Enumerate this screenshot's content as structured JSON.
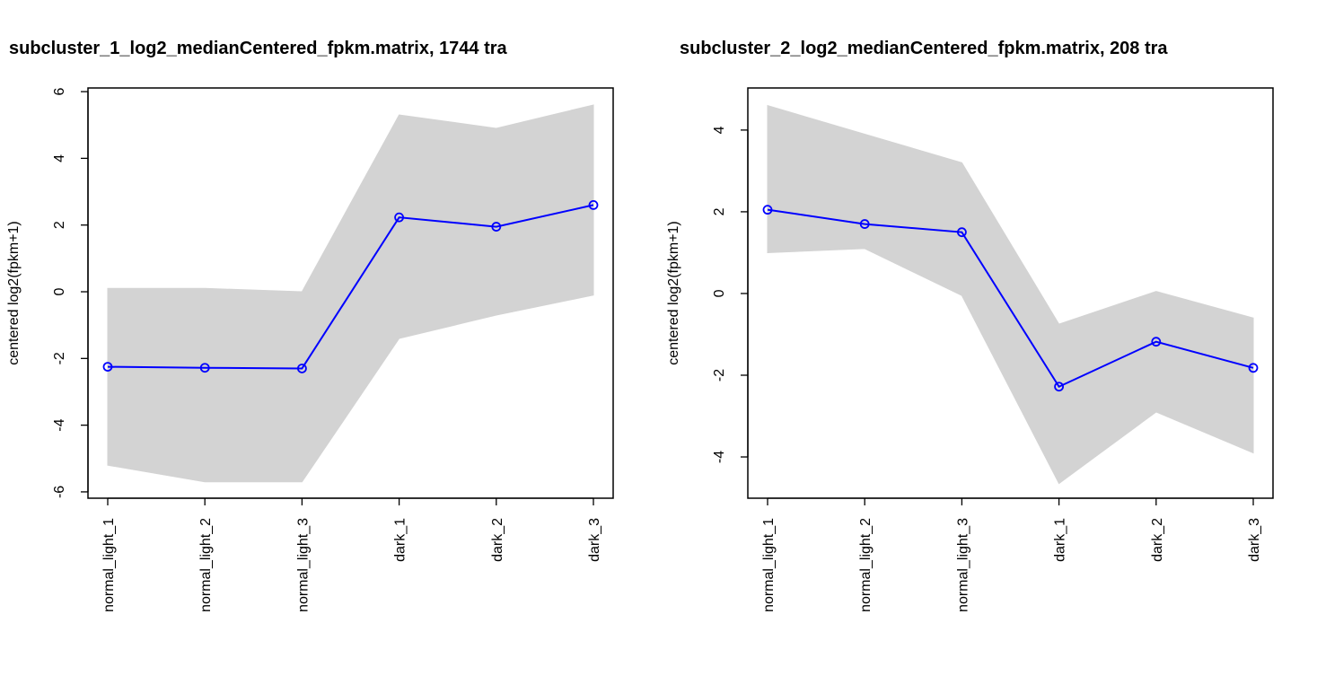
{
  "chart_data": [
    {
      "type": "line",
      "title": "subcluster_1_log2_medianCentered_fpkm.matrix, 1744 tra",
      "y_label": "centered log2(fpkm+1)",
      "categories": [
        "normal_light_1",
        "normal_light_2",
        "normal_light_3",
        "dark_1",
        "dark_2",
        "dark_3"
      ],
      "band": {
        "color": "#d3d3d3",
        "upper": [
          0.1,
          0.1,
          0.0,
          5.3,
          4.9,
          5.6
        ],
        "lower": [
          -5.2,
          -5.7,
          -5.7,
          -1.4,
          -0.7,
          -0.1
        ]
      },
      "series": [
        {
          "color": "#0000ff",
          "values": [
            -2.25,
            -2.28,
            -2.3,
            2.23,
            1.95,
            2.6
          ]
        }
      ],
      "ylim": [
        -6.19,
        6.11
      ],
      "yticks": [
        -6,
        -4,
        -2,
        0,
        2,
        4,
        6
      ]
    },
    {
      "type": "line",
      "title": "subcluster_2_log2_medianCentered_fpkm.matrix, 208 tra",
      "y_label": "centered log2(fpkm+1)",
      "categories": [
        "normal_light_1",
        "normal_light_2",
        "normal_light_3",
        "dark_1",
        "dark_2",
        "dark_3"
      ],
      "band": {
        "color": "#d3d3d3",
        "upper": [
          4.6,
          3.9,
          3.2,
          -0.75,
          0.05,
          -0.6
        ],
        "lower": [
          1.0,
          1.1,
          -0.05,
          -4.65,
          -2.9,
          -3.9
        ]
      },
      "series": [
        {
          "color": "#0000ff",
          "values": [
            2.05,
            1.7,
            1.5,
            -2.28,
            -1.18,
            -1.82
          ]
        }
      ],
      "ylim": [
        -5.01,
        5.03
      ],
      "yticks": [
        -4,
        -2,
        0,
        2,
        4
      ]
    }
  ]
}
